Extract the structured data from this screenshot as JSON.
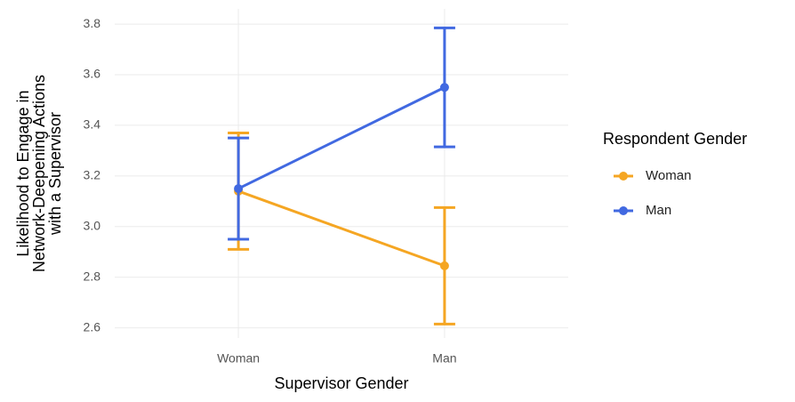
{
  "chart_data": {
    "type": "line",
    "x_label": "Supervisor Gender",
    "y_label": [
      "Likelihood to Engage in",
      "Network-Deepening Actions",
      "with a Supervisor"
    ],
    "legend_title": "Respondent Gender",
    "categories": [
      "Woman",
      "Man"
    ],
    "series": [
      {
        "name": "Woman",
        "color": "#f5a623",
        "values": [
          3.14,
          2.845
        ],
        "errors": [
          0.23,
          0.23
        ]
      },
      {
        "name": "Man",
        "color": "#4169e1",
        "values": [
          3.15,
          3.55
        ],
        "errors": [
          0.2,
          0.235
        ]
      }
    ],
    "ylim": [
      2.56,
      3.86
    ],
    "yticks": [
      {
        "value": 2.6,
        "label": "2.6"
      },
      {
        "value": 2.8,
        "label": "2.8"
      },
      {
        "value": 3.0,
        "label": "3.0"
      },
      {
        "value": 3.2,
        "label": "3.2"
      },
      {
        "value": 3.4,
        "label": "3.4"
      },
      {
        "value": 3.6,
        "label": "3.6"
      },
      {
        "value": 3.8,
        "label": "3.8"
      }
    ],
    "grid": true,
    "legend_position": "right"
  }
}
